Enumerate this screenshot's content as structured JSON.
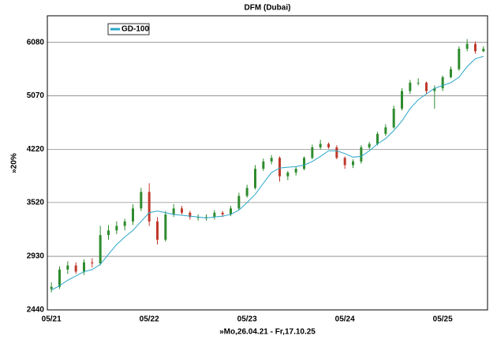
{
  "chart_data": {
    "type": "candlestick",
    "title": "DFM (Dubai)",
    "x_label": "»Mo,26.04.21 - Fr,17.10.25",
    "y_label": "»20%",
    "categories": [
      "05/21",
      null,
      null,
      null,
      null,
      null,
      null,
      null,
      null,
      null,
      null,
      null,
      "05/22",
      null,
      null,
      null,
      null,
      null,
      null,
      null,
      null,
      null,
      null,
      null,
      "05/23",
      null,
      null,
      null,
      null,
      null,
      null,
      null,
      null,
      null,
      null,
      null,
      "05/24",
      null,
      null,
      null,
      null,
      null,
      null,
      null,
      null,
      null,
      null,
      null,
      "05/25",
      null,
      null,
      null,
      null,
      null
    ],
    "open": [
      2620,
      2640,
      2800,
      2840,
      2780,
      2870,
      2860,
      3150,
      3200,
      3250,
      3300,
      3450,
      3650,
      3300,
      3100,
      3380,
      3450,
      3400,
      3350,
      3350,
      3350,
      3400,
      3380,
      3450,
      3600,
      3700,
      3950,
      4050,
      4100,
      3850,
      3900,
      3950,
      4100,
      4250,
      4300,
      4250,
      4100,
      4000,
      4050,
      4250,
      4300,
      4450,
      4550,
      4850,
      5150,
      5300,
      5300,
      5150,
      5200,
      5400,
      5550,
      5950,
      6050,
      5900
    ],
    "high": [
      2680,
      2830,
      2880,
      2870,
      2900,
      2910,
      3250,
      3260,
      3300,
      3330,
      3500,
      3700,
      3760,
      3350,
      3420,
      3500,
      3480,
      3420,
      3380,
      3380,
      3430,
      3420,
      3480,
      3640,
      3740,
      4000,
      4090,
      4140,
      4120,
      3920,
      3980,
      4120,
      4290,
      4360,
      4320,
      4280,
      4120,
      4080,
      4280,
      4330,
      4480,
      4600,
      4900,
      5200,
      5350,
      5380,
      5320,
      5250,
      5430,
      5600,
      6000,
      6150,
      6100,
      6000
    ],
    "low": [
      2590,
      2620,
      2760,
      2760,
      2750,
      2820,
      2840,
      3100,
      3160,
      3200,
      3260,
      3420,
      3250,
      3050,
      3080,
      3350,
      3380,
      3320,
      3310,
      3310,
      3320,
      3350,
      3360,
      3430,
      3580,
      3680,
      3920,
      4010,
      3780,
      3800,
      3860,
      3930,
      4080,
      4220,
      4230,
      4080,
      3950,
      3960,
      4020,
      4220,
      4280,
      4420,
      4530,
      4820,
      5100,
      5250,
      5100,
      4850,
      5150,
      5380,
      5520,
      5900,
      5850,
      5880
    ],
    "close": [
      2640,
      2800,
      2840,
      2780,
      2870,
      2860,
      3150,
      3200,
      3250,
      3300,
      3450,
      3650,
      3300,
      3100,
      3380,
      3450,
      3400,
      3350,
      3350,
      3350,
      3400,
      3380,
      3450,
      3600,
      3700,
      3950,
      4050,
      4100,
      3850,
      3900,
      3950,
      4100,
      4250,
      4300,
      4250,
      4100,
      4000,
      4050,
      4250,
      4300,
      4450,
      4550,
      4850,
      5150,
      5300,
      5300,
      5150,
      5200,
      5400,
      5550,
      5950,
      6050,
      5900,
      5950
    ],
    "up_color": "#2e8b2e",
    "down_color": "#c0392b",
    "series": [
      {
        "name": "GD-100",
        "color": "#2aa6c9",
        "values": [
          2610,
          2650,
          2700,
          2740,
          2780,
          2800,
          2850,
          2950,
          3050,
          3130,
          3200,
          3300,
          3400,
          3420,
          3400,
          3380,
          3370,
          3360,
          3350,
          3340,
          3350,
          3360,
          3380,
          3430,
          3520,
          3620,
          3760,
          3900,
          3960,
          3970,
          3980,
          4000,
          4050,
          4120,
          4200,
          4200,
          4160,
          4110,
          4120,
          4200,
          4300,
          4380,
          4500,
          4650,
          4850,
          5000,
          5100,
          5200,
          5250,
          5300,
          5400,
          5600,
          5750,
          5800
        ]
      }
    ],
    "ylim": [
      2440,
      6660
    ],
    "yticks": [
      2440,
      2930,
      3520,
      4220,
      5070,
      6080
    ],
    "log_scale": true,
    "grid": true,
    "legend": "top-left"
  }
}
